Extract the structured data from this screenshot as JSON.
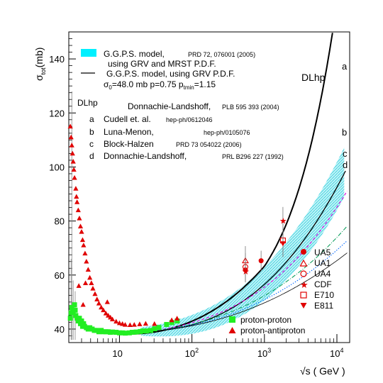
{
  "chart_data": {
    "type": "scatter",
    "x_scale": "log",
    "xlim": [
      2,
      15000
    ],
    "ylim": [
      35,
      150
    ],
    "ylabel_main": "σ",
    "ylabel_sub": "tot",
    "ylabel_unit": "(mb)",
    "xlabel": "√s ( GeV )",
    "y_ticks": [
      "40",
      "60",
      "80",
      "100",
      "120",
      "140"
    ],
    "x_ticks": [
      {
        "base": "10",
        "exp": ""
      },
      {
        "base": "10",
        "exp": "2"
      },
      {
        "base": "10",
        "exp": "3"
      },
      {
        "base": "10",
        "exp": "4"
      }
    ],
    "legend": {
      "band_line1": "G.G.P.S. model,",
      "band_ref": "PRD 72, 076001 (2005)",
      "band_line2": "using GRV and MRST P.D.F.",
      "line_line1": "G.G.P.S. model, using GRV P.D.F.",
      "line_line2_prefix": "σ",
      "line_line2_sub0": "0",
      "line_line2_mid": "=48.0 mb p=0.75 p",
      "line_line2_sub1": "tmin",
      "line_line2_end": "=1.15",
      "dl_tag": "DLhp",
      "dl_name": "Donnachie-Landshoff,",
      "dl_ref": "PLB 595 393 (2004)",
      "entries": [
        {
          "letter": "a",
          "name": "Cudell et. al.",
          "ref": "hep-ph/0612046"
        },
        {
          "letter": "b",
          "name": "Luna-Menon,",
          "ref": "hep-ph/0105076"
        },
        {
          "letter": "c",
          "name": "Block-Halzen",
          "ref": "PRD 73 054022 (2006)"
        },
        {
          "letter": "d",
          "name": "Donnachie-Landshoff,",
          "ref": "PRL B296 227 (1992)"
        }
      ]
    },
    "experiments": [
      "UA5",
      "UA1",
      "UA4",
      "CDF",
      "E710",
      "E811"
    ],
    "species": [
      "proton-proton",
      "proton-antiproton"
    ],
    "curve_labels": {
      "dlhp": "DLhp",
      "a": "a",
      "b": "b",
      "c": "c",
      "d": "d"
    },
    "pp_data": [
      [
        2.1,
        44
      ],
      [
        2.15,
        46
      ],
      [
        2.2,
        48
      ],
      [
        2.25,
        47
      ],
      [
        2.3,
        46
      ],
      [
        2.4,
        49
      ],
      [
        2.45,
        47
      ],
      [
        2.5,
        45
      ],
      [
        2.6,
        44
      ],
      [
        2.7,
        43
      ],
      [
        2.8,
        44
      ],
      [
        2.9,
        42
      ],
      [
        3.0,
        43
      ],
      [
        3.1,
        41
      ],
      [
        3.2,
        42
      ],
      [
        3.3,
        41
      ],
      [
        3.5,
        40.5
      ],
      [
        3.7,
        40
      ],
      [
        3.9,
        40.5
      ],
      [
        4.2,
        40
      ],
      [
        4.5,
        39.5
      ],
      [
        4.8,
        39.5
      ],
      [
        5.2,
        39
      ],
      [
        5.6,
        39.5
      ],
      [
        6.0,
        39
      ],
      [
        6.5,
        39
      ],
      [
        7.0,
        39
      ],
      [
        7.5,
        38.8
      ],
      [
        8.0,
        38.9
      ],
      [
        9.0,
        38.8
      ],
      [
        10.0,
        38.6
      ],
      [
        11,
        38.6
      ],
      [
        12,
        38.5
      ],
      [
        13.7,
        38.6
      ],
      [
        15,
        38.8
      ],
      [
        17,
        38.9
      ],
      [
        19.4,
        39.1
      ],
      [
        21,
        39.3
      ],
      [
        23.5,
        39.3
      ],
      [
        27,
        39.5
      ],
      [
        30.6,
        40.1
      ],
      [
        35,
        40.6
      ],
      [
        44.7,
        41.7
      ],
      [
        52.8,
        42.4
      ],
      [
        62.7,
        43.0
      ]
    ],
    "ppbar_data": [
      [
        2.1,
        115
      ],
      [
        2.15,
        111
      ],
      [
        2.2,
        108
      ],
      [
        2.25,
        105
      ],
      [
        2.3,
        102
      ],
      [
        2.35,
        99
      ],
      [
        2.4,
        96
      ],
      [
        2.5,
        92
      ],
      [
        2.55,
        89
      ],
      [
        2.6,
        87
      ],
      [
        2.7,
        84
      ],
      [
        2.8,
        81
      ],
      [
        2.9,
        78
      ],
      [
        3.0,
        76
      ],
      [
        3.1,
        73
      ],
      [
        3.2,
        71
      ],
      [
        3.35,
        68
      ],
      [
        3.5,
        65
      ],
      [
        3.7,
        62
      ],
      [
        3.9,
        59
      ],
      [
        4.1,
        57
      ],
      [
        4.3,
        55
      ],
      [
        4.6,
        53
      ],
      [
        4.9,
        51
      ],
      [
        5.2,
        49.5
      ],
      [
        5.6,
        48
      ],
      [
        6.0,
        47
      ],
      [
        6.5,
        45.8
      ],
      [
        7.0,
        45
      ],
      [
        7.5,
        44.3
      ],
      [
        8.0,
        43.6
      ],
      [
        9.0,
        42.8
      ],
      [
        10.0,
        42.2
      ],
      [
        11.0,
        41.9
      ],
      [
        12.0,
        41.6
      ],
      [
        14,
        41.5
      ],
      [
        16,
        41.6
      ],
      [
        19,
        41.8
      ],
      [
        23,
        42
      ],
      [
        30.4,
        41.9
      ],
      [
        52.6,
        43.3
      ],
      [
        62.3,
        43.9
      ],
      [
        3.4,
        57
      ],
      [
        2.75,
        56
      ],
      [
        3.15,
        49
      ],
      [
        6.8,
        50
      ]
    ],
    "high_energy": [
      {
        "exp": "UA5",
        "x": 546,
        "y": 61.9,
        "err": 1.5
      },
      {
        "exp": "UA5",
        "x": 900,
        "y": 65.3,
        "err": 0.7
      },
      {
        "exp": "UA1",
        "x": 546,
        "y": 65.3,
        "err": 2.4
      },
      {
        "exp": "UA4",
        "x": 546,
        "y": 63.0,
        "err": 2.1
      },
      {
        "exp": "CDF",
        "x": 546,
        "y": 61.3,
        "err": 1.0
      },
      {
        "exp": "CDF",
        "x": 1800,
        "y": 80.0,
        "err": 2.2
      },
      {
        "exp": "E710",
        "x": 1800,
        "y": 72.8,
        "err": 3.1
      },
      {
        "exp": "E811",
        "x": 1800,
        "y": 71.7,
        "err": 2.0
      }
    ]
  }
}
